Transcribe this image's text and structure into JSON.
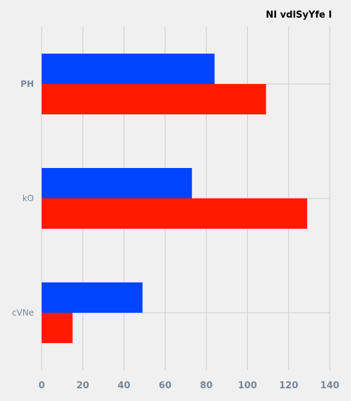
{
  "chart_data": {
    "type": "bar",
    "orientation": "horizontal",
    "title": "NI vdlSyYfe I",
    "xlabel": "",
    "ylabel": "",
    "categories": [
      "PH",
      "kO",
      "cVNe"
    ],
    "category_bold": [
      true,
      false,
      false
    ],
    "series": [
      {
        "values": [
          84,
          73,
          49
        ],
        "color": "#0044ff"
      },
      {
        "values": [
          109,
          129,
          15
        ],
        "color": "#ff1a00"
      }
    ],
    "xlim": [
      0,
      140
    ],
    "xticks": [
      0,
      20,
      40,
      60,
      80,
      100,
      120,
      140
    ],
    "grid": true,
    "background": "#f0f0f0",
    "grid_color": "#cccccc",
    "tick_color": "#778899"
  }
}
